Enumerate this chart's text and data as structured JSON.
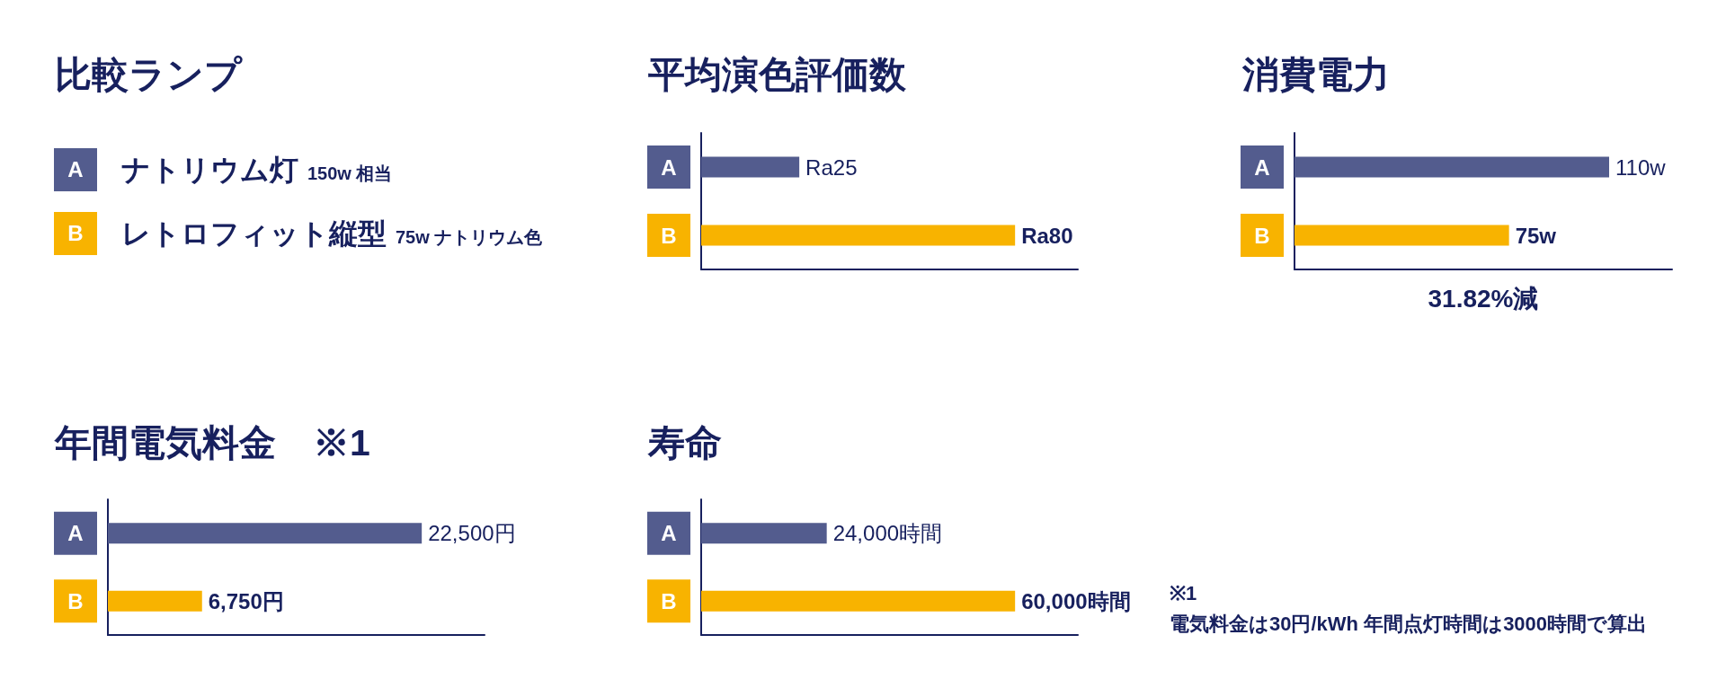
{
  "chart_data": [
    {
      "type": "other",
      "title": "比較ランプ",
      "categories": [
        "A",
        "B"
      ],
      "colors": [
        "#535c8e",
        "#f8b300"
      ],
      "annotations": [
        "ナトリウム灯",
        "150w 相当",
        "レトロフィット縦型",
        "75w ナトリウム色"
      ]
    },
    {
      "type": "bar",
      "title": "平均演色評価数",
      "orientation": "horizontal",
      "categories": [
        "A",
        "B"
      ],
      "values": [
        25,
        80
      ],
      "colors": [
        "#535c8e",
        "#f8b300"
      ],
      "value_labels": [
        "Ra25",
        "Ra80"
      ],
      "tick_labels": "y"
    },
    {
      "type": "bar",
      "title": "消費電力",
      "orientation": "horizontal",
      "categories": [
        "A",
        "B"
      ],
      "values": [
        110,
        75
      ],
      "colors": [
        "#535c8e",
        "#f8b300"
      ],
      "value_labels": [
        "110w",
        "75w"
      ],
      "tick_labels": "y",
      "annotations": [
        "31.82%減"
      ]
    },
    {
      "type": "bar",
      "title": "年間電気料金　※1",
      "orientation": "horizontal",
      "categories": [
        "A",
        "B"
      ],
      "values": [
        22500,
        6750
      ],
      "colors": [
        "#535c8e",
        "#f8b300"
      ],
      "value_labels": [
        "22,500円",
        "6,750円"
      ],
      "tick_labels": "y"
    },
    {
      "type": "bar",
      "title": "寿命",
      "orientation": "horizontal",
      "categories": [
        "A",
        "B"
      ],
      "values": [
        24000,
        60000
      ],
      "colors": [
        "#535c8e",
        "#f8b300"
      ],
      "value_labels": [
        "24,000時間",
        "60,000時間"
      ],
      "tick_labels": "y"
    },
    {
      "type": "other",
      "annotations": [
        "※1",
        "電気料金は30円/kWh 年間点灯時間は3000時間で算出"
      ]
    }
  ]
}
